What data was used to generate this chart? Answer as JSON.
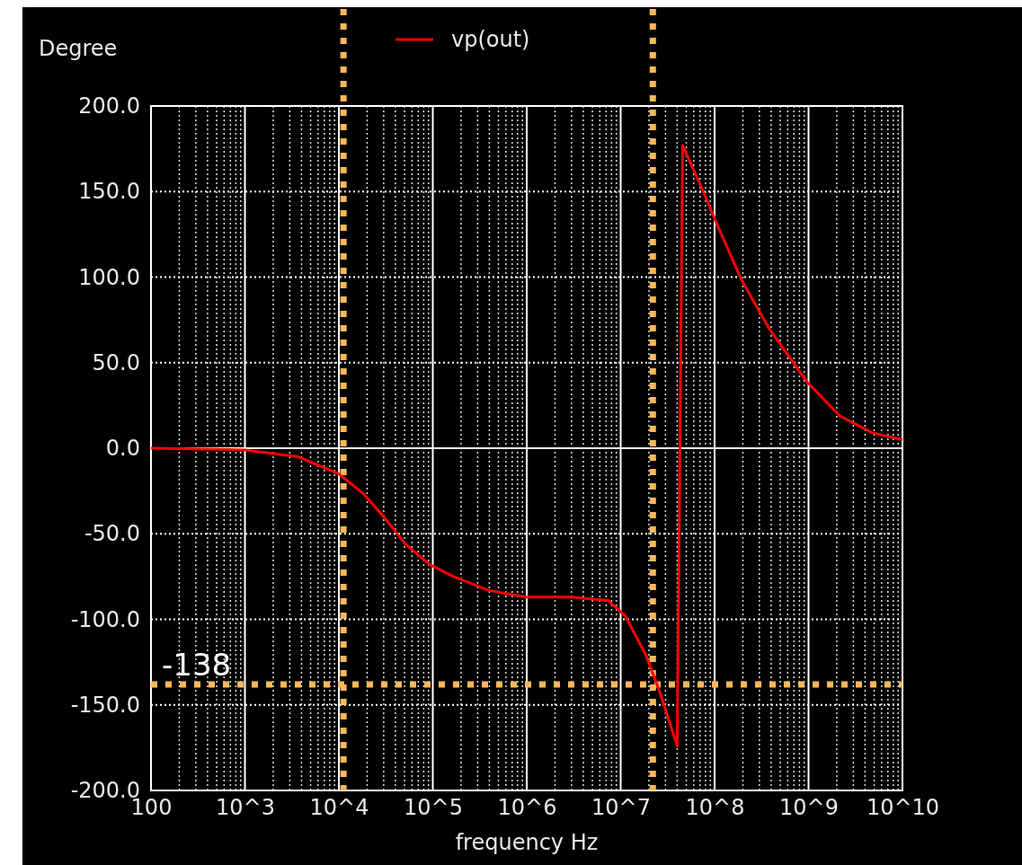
{
  "chart_data": {
    "type": "line",
    "xlabel": "frequency    Hz",
    "ylabel": "Degree",
    "log": "x",
    "grid": true,
    "legend": "top",
    "line_style": "solid",
    "marker": "none",
    "xlim": [
      100,
      10000000000
    ],
    "ylim": [
      -200,
      200
    ],
    "xticks": [
      100,
      {
        "value": 1000,
        "label": "10^3"
      },
      {
        "value": 10000,
        "label": "10^4"
      },
      {
        "value": 100000,
        "label": "10^5"
      },
      {
        "value": 1000000,
        "label": "10^6"
      },
      {
        "value": 10000000,
        "label": "10^7"
      },
      {
        "value": 100000000,
        "label": "10^8"
      },
      {
        "value": 1000000000,
        "label": "10^9"
      },
      {
        "value": 10000000000,
        "label": "10^10"
      }
    ],
    "yticks": [
      {
        "value": -200,
        "label": "-200.0"
      },
      {
        "value": -150,
        "label": "-150.0"
      },
      {
        "value": -100,
        "label": "-100.0"
      },
      {
        "value": -50,
        "label": "-50.0"
      },
      {
        "value": 0,
        "label": "0.0"
      },
      {
        "value": 50,
        "label": "50.0"
      },
      {
        "value": 100,
        "label": "100.0"
      },
      {
        "value": 150,
        "label": "150.0"
      },
      {
        "value": 200,
        "label": "200.0"
      }
    ],
    "series": [
      {
        "name": "vp(out)",
        "color": "#ff0000",
        "x": [
          100,
          1000,
          3700,
          10000,
          18600,
          31000,
          51000,
          93000,
          166000,
          390000,
          980000,
          2900000,
          7400000,
          11200000,
          18600000,
          26300000,
          40000000,
          45700000,
          75900000,
          102000000,
          191000000,
          380000000,
          955000000,
          2140000000,
          4790000000,
          10000000000
        ],
        "values": [
          0,
          -1,
          -5,
          -15,
          -27,
          -41,
          -56,
          -68,
          -75,
          -83,
          -87,
          -87,
          -89,
          -98,
          -121,
          -143,
          -174,
          177,
          150,
          133,
          99,
          70,
          39,
          19,
          9,
          5
        ]
      }
    ],
    "ref_lines": [
      {
        "axis": "x",
        "value": 11200,
        "color": "#fbb85a",
        "line_style": "dotted"
      },
      {
        "axis": "x",
        "value": 22000000,
        "color": "#fbb85a",
        "line_style": "dotted"
      },
      {
        "axis": "y",
        "value": -138,
        "label": "-138",
        "color": "#fbb85a",
        "line_style": "dotted"
      }
    ]
  }
}
